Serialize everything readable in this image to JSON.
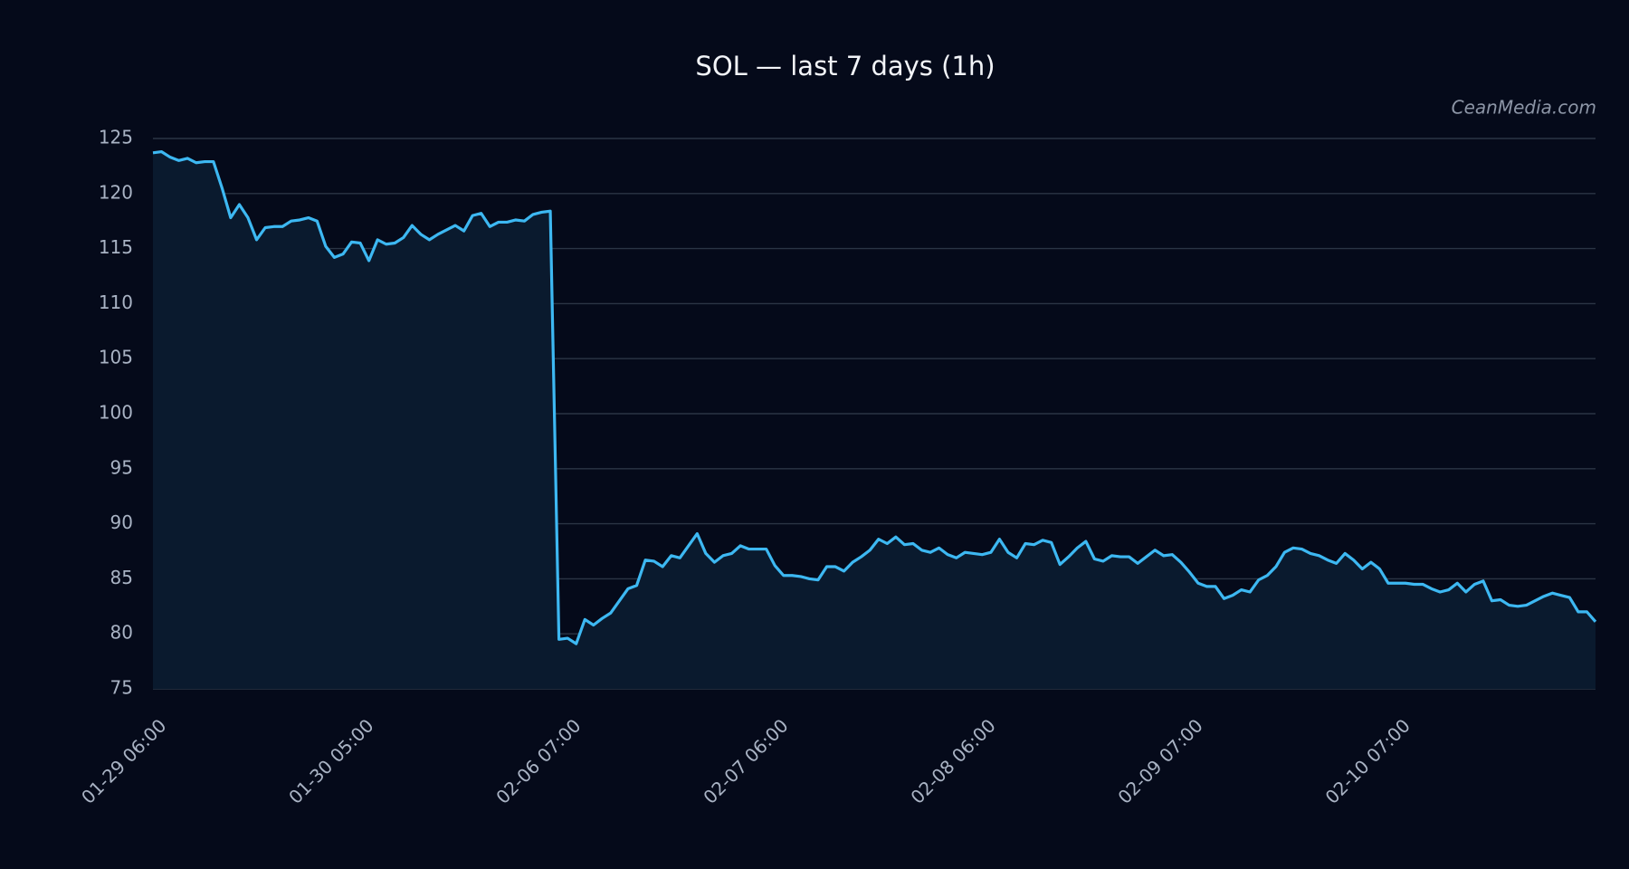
{
  "chart_data": {
    "type": "line",
    "title": "SOL — last 7 days (1h)",
    "watermark": "CeanMedia.com",
    "color": "#3db8f2",
    "area_color": "#0a1a2e",
    "grid": true,
    "ylim": [
      75,
      125
    ],
    "yticks": [
      75,
      80,
      85,
      90,
      95,
      100,
      105,
      110,
      115,
      120,
      125
    ],
    "categories": [
      "01-29 06:00",
      null,
      null,
      null,
      null,
      null,
      null,
      null,
      null,
      null,
      null,
      null,
      null,
      null,
      null,
      null,
      null,
      null,
      null,
      null,
      null,
      null,
      null,
      null,
      "01-30 05:00",
      null,
      null,
      null,
      null,
      null,
      null,
      null,
      null,
      null,
      null,
      null,
      null,
      null,
      null,
      null,
      null,
      null,
      null,
      null,
      null,
      null,
      null,
      null,
      "02-06 07:00",
      null,
      null,
      null,
      null,
      null,
      null,
      null,
      null,
      null,
      null,
      null,
      null,
      null,
      null,
      null,
      null,
      null,
      null,
      null,
      null,
      null,
      null,
      null,
      "02-07 06:00",
      null,
      null,
      null,
      null,
      null,
      null,
      null,
      null,
      null,
      null,
      null,
      null,
      null,
      null,
      null,
      null,
      null,
      null,
      null,
      null,
      null,
      null,
      null,
      "02-08 06:00",
      null,
      null,
      null,
      null,
      null,
      null,
      null,
      null,
      null,
      null,
      null,
      null,
      null,
      null,
      null,
      null,
      null,
      null,
      null,
      null,
      null,
      null,
      null,
      "02-09 07:00",
      null,
      null,
      null,
      null,
      null,
      null,
      null,
      null,
      null,
      null,
      null,
      null,
      null,
      null,
      null,
      null,
      null,
      null,
      null,
      null,
      null,
      null,
      null,
      "02-10 07:00",
      null,
      null,
      null,
      null,
      null,
      null,
      null,
      null,
      null,
      null,
      null,
      null,
      null,
      null,
      null,
      null,
      null,
      null,
      null,
      null,
      null,
      null,
      null
    ],
    "values": [
      123.7,
      123.8,
      123.3,
      123.0,
      123.2,
      122.8,
      122.9,
      122.9,
      120.5,
      117.8,
      119.0,
      117.8,
      115.8,
      116.9,
      117.0,
      117.0,
      117.5,
      117.6,
      117.8,
      117.5,
      115.2,
      114.2,
      114.5,
      115.6,
      115.5,
      113.9,
      115.8,
      115.4,
      115.5,
      116.0,
      117.1,
      116.3,
      115.8,
      116.3,
      116.7,
      117.1,
      116.6,
      118.0,
      118.2,
      117.0,
      117.4,
      117.4,
      117.6,
      117.5,
      118.1,
      118.3,
      118.4,
      79.5,
      79.6,
      79.1,
      81.3,
      80.8,
      81.4,
      81.9,
      83.0,
      84.1,
      84.4,
      86.7,
      86.6,
      86.1,
      87.1,
      86.9,
      88.0,
      89.1,
      87.3,
      86.5,
      87.1,
      87.3,
      88.0,
      87.7,
      87.7,
      87.7,
      86.2,
      85.3,
      85.3,
      85.2,
      85.0,
      84.9,
      86.1,
      86.1,
      85.7,
      86.5,
      87.0,
      87.6,
      88.6,
      88.2,
      88.8,
      88.1,
      88.2,
      87.6,
      87.4,
      87.8,
      87.2,
      86.9,
      87.4,
      87.3,
      87.2,
      87.4,
      88.6,
      87.4,
      86.9,
      88.2,
      88.1,
      88.5,
      88.3,
      86.3,
      87.0,
      87.8,
      88.4,
      86.8,
      86.6,
      87.1,
      87.0,
      87.0,
      86.4,
      87.0,
      87.6,
      87.1,
      87.2,
      86.5,
      85.6,
      84.6,
      84.3,
      84.3,
      83.2,
      83.5,
      84.0,
      83.8,
      84.9,
      85.3,
      86.1,
      87.4,
      87.8,
      87.7,
      87.3,
      87.1,
      86.7,
      86.4,
      87.3,
      86.7,
      85.9,
      86.5,
      85.9,
      84.6,
      84.6,
      84.6,
      84.5,
      84.5,
      84.1,
      83.8,
      84.0,
      84.6,
      83.8,
      84.5,
      84.8,
      83.0,
      83.1,
      82.6,
      82.5,
      82.6,
      83.0,
      83.4,
      83.7,
      83.5,
      83.3,
      82.0,
      82.0,
      81.1
    ]
  }
}
